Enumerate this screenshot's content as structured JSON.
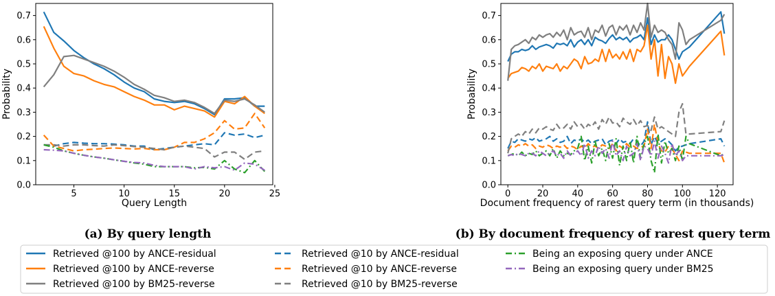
{
  "colors": {
    "blue": "#1f77b4",
    "orange": "#ff7f0e",
    "gray": "#7f7f7f",
    "green": "#2ca02c",
    "purple": "#9467bd"
  },
  "legend": {
    "placement": "bottom",
    "entries": [
      {
        "label": "Retrieved @100 by ANCE-residual",
        "color": "#1f77b4",
        "style": "solid"
      },
      {
        "label": "Retrieved @100 by ANCE-reverse",
        "color": "#ff7f0e",
        "style": "solid"
      },
      {
        "label": "Retrieved @100 by BM25-reverse",
        "color": "#7f7f7f",
        "style": "solid"
      },
      {
        "label": "Retrieved @10 by ANCE-residual",
        "color": "#1f77b4",
        "style": "dashed"
      },
      {
        "label": "Retrieved @10 by ANCE-reverse",
        "color": "#ff7f0e",
        "style": "dashed"
      },
      {
        "label": "Retrieved @10 by BM25-reverse",
        "color": "#7f7f7f",
        "style": "dashed"
      },
      {
        "label": "Being an exposing query under ANCE",
        "color": "#2ca02c",
        "style": "dashdot"
      },
      {
        "label": "Being an exposing query under BM25",
        "color": "#9467bd",
        "style": "dashdot"
      }
    ]
  },
  "chart_data": [
    {
      "type": "line",
      "caption": "(a) By query length",
      "xlabel": "Query Length",
      "ylabel": "Probability",
      "xlim": [
        1.2,
        24.8
      ],
      "ylim": [
        0,
        0.75
      ],
      "xticks": [
        5,
        10,
        15,
        20,
        25
      ],
      "yticks": [
        0.0,
        0.1,
        0.2,
        0.3,
        0.4,
        0.5,
        0.6,
        0.7
      ],
      "grid": false,
      "x": [
        2,
        3,
        4,
        5,
        6,
        7,
        8,
        9,
        10,
        11,
        12,
        13,
        14,
        15,
        16,
        17,
        18,
        19,
        20,
        21,
        22,
        23,
        24
      ],
      "series": [
        {
          "name": "Retrieved @100 by ANCE-residual",
          "color": "#1f77b4",
          "style": "solid",
          "values": [
            0.715,
            0.63,
            0.595,
            0.555,
            0.525,
            0.5,
            0.48,
            0.455,
            0.425,
            0.4,
            0.385,
            0.355,
            0.345,
            0.34,
            0.345,
            0.335,
            0.315,
            0.29,
            0.355,
            0.355,
            0.36,
            0.325,
            0.325
          ]
        },
        {
          "name": "Retrieved @100 by ANCE-reverse",
          "color": "#ff7f0e",
          "style": "solid",
          "values": [
            0.655,
            0.565,
            0.49,
            0.46,
            0.45,
            0.43,
            0.415,
            0.405,
            0.385,
            0.365,
            0.35,
            0.33,
            0.33,
            0.31,
            0.325,
            0.315,
            0.305,
            0.28,
            0.345,
            0.335,
            0.365,
            0.325,
            0.295
          ]
        },
        {
          "name": "Retrieved @100 by BM25-reverse",
          "color": "#7f7f7f",
          "style": "solid",
          "values": [
            0.405,
            0.455,
            0.53,
            0.535,
            0.52,
            0.505,
            0.49,
            0.47,
            0.445,
            0.415,
            0.395,
            0.37,
            0.36,
            0.345,
            0.35,
            0.34,
            0.32,
            0.295,
            0.35,
            0.345,
            0.355,
            0.33,
            0.3
          ]
        },
        {
          "name": "Retrieved @10 by ANCE-residual",
          "color": "#1f77b4",
          "style": "dashed",
          "values": [
            0.165,
            0.16,
            0.17,
            0.175,
            0.172,
            0.17,
            0.17,
            0.168,
            0.165,
            0.16,
            0.16,
            0.145,
            0.15,
            0.155,
            0.16,
            0.165,
            0.17,
            0.165,
            0.215,
            0.205,
            0.21,
            0.195,
            0.205
          ]
        },
        {
          "name": "Retrieved @10 by ANCE-reverse",
          "color": "#ff7f0e",
          "style": "dashed",
          "values": [
            0.205,
            0.16,
            0.15,
            0.14,
            0.145,
            0.147,
            0.15,
            0.152,
            0.15,
            0.148,
            0.15,
            0.145,
            0.145,
            0.155,
            0.175,
            0.175,
            0.19,
            0.215,
            0.265,
            0.23,
            0.235,
            0.295,
            0.235
          ]
        },
        {
          "name": "Retrieved @10 by BM25-reverse",
          "color": "#7f7f7f",
          "style": "dashed",
          "values": [
            0.165,
            0.165,
            0.16,
            0.165,
            0.165,
            0.162,
            0.16,
            0.165,
            0.162,
            0.158,
            0.155,
            0.15,
            0.145,
            0.155,
            0.16,
            0.155,
            0.15,
            0.115,
            0.135,
            0.135,
            0.105,
            0.135,
            0.14
          ]
        },
        {
          "name": "Being an exposing query under ANCE",
          "color": "#2ca02c",
          "style": "dashdot",
          "values": [
            0.165,
            0.155,
            0.14,
            0.13,
            0.122,
            0.115,
            0.11,
            0.103,
            0.097,
            0.09,
            0.085,
            0.075,
            0.075,
            0.075,
            0.075,
            0.07,
            0.072,
            0.065,
            0.1,
            0.065,
            0.05,
            0.1,
            0.055
          ]
        },
        {
          "name": "Being an exposing query under BM25",
          "color": "#9467bd",
          "style": "dashdot",
          "values": [
            0.145,
            0.143,
            0.14,
            0.13,
            0.122,
            0.115,
            0.11,
            0.103,
            0.097,
            0.092,
            0.09,
            0.08,
            0.075,
            0.075,
            0.075,
            0.065,
            0.075,
            0.07,
            0.075,
            0.06,
            0.09,
            0.085,
            0.06
          ]
        }
      ]
    },
    {
      "type": "line",
      "caption": "(b) By document frequency of rarest query term",
      "xlabel": "Document frequency of rarest query term (in thousands)",
      "ylabel": "Probability",
      "xlim": [
        -4,
        129
      ],
      "ylim": [
        0,
        0.75
      ],
      "xticks": [
        0,
        20,
        40,
        60,
        80,
        100,
        120
      ],
      "yticks": [
        0.0,
        0.1,
        0.2,
        0.3,
        0.4,
        0.5,
        0.6,
        0.7
      ],
      "grid": false,
      "x": [
        0,
        2,
        4,
        6,
        8,
        10,
        12,
        14,
        16,
        18,
        20,
        22,
        24,
        26,
        28,
        30,
        32,
        34,
        36,
        38,
        40,
        42,
        44,
        46,
        48,
        50,
        52,
        54,
        56,
        58,
        60,
        62,
        64,
        66,
        68,
        70,
        72,
        74,
        76,
        78,
        80,
        82,
        84,
        86,
        88,
        90,
        92,
        94,
        96,
        98,
        100,
        102,
        104,
        122,
        124
      ],
      "series": [
        {
          "name": "Retrieved @100 by ANCE-residual",
          "color": "#1f77b4",
          "style": "solid",
          "values": [
            0.51,
            0.54,
            0.55,
            0.55,
            0.56,
            0.555,
            0.56,
            0.575,
            0.56,
            0.57,
            0.575,
            0.58,
            0.575,
            0.565,
            0.585,
            0.58,
            0.585,
            0.575,
            0.6,
            0.57,
            0.59,
            0.6,
            0.58,
            0.6,
            0.575,
            0.61,
            0.6,
            0.595,
            0.585,
            0.605,
            0.62,
            0.6,
            0.61,
            0.6,
            0.61,
            0.59,
            0.605,
            0.61,
            0.62,
            0.6,
            0.69,
            0.58,
            0.62,
            0.59,
            0.6,
            0.6,
            0.62,
            0.6,
            0.56,
            0.52,
            0.55,
            0.56,
            0.57,
            0.715,
            0.625
          ]
        },
        {
          "name": "Retrieved @100 by ANCE-reverse",
          "color": "#ff7f0e",
          "style": "solid",
          "values": [
            0.44,
            0.46,
            0.465,
            0.47,
            0.485,
            0.48,
            0.47,
            0.49,
            0.48,
            0.5,
            0.47,
            0.49,
            0.485,
            0.48,
            0.5,
            0.47,
            0.49,
            0.48,
            0.5,
            0.52,
            0.51,
            0.48,
            0.53,
            0.5,
            0.505,
            0.52,
            0.51,
            0.56,
            0.51,
            0.56,
            0.525,
            0.54,
            0.52,
            0.55,
            0.52,
            0.56,
            0.51,
            0.56,
            0.55,
            0.575,
            0.66,
            0.52,
            0.6,
            0.45,
            0.58,
            0.44,
            0.53,
            0.5,
            0.42,
            0.5,
            0.45,
            0.47,
            0.49,
            0.635,
            0.535
          ]
        },
        {
          "name": "Retrieved @100 by BM25-reverse",
          "color": "#7f7f7f",
          "style": "solid",
          "values": [
            0.43,
            0.56,
            0.575,
            0.58,
            0.59,
            0.6,
            0.585,
            0.61,
            0.6,
            0.62,
            0.61,
            0.62,
            0.625,
            0.61,
            0.63,
            0.615,
            0.64,
            0.6,
            0.65,
            0.62,
            0.63,
            0.635,
            0.61,
            0.65,
            0.6,
            0.64,
            0.63,
            0.66,
            0.615,
            0.65,
            0.66,
            0.62,
            0.655,
            0.64,
            0.66,
            0.62,
            0.66,
            0.63,
            0.67,
            0.64,
            0.75,
            0.61,
            0.66,
            0.63,
            0.64,
            0.63,
            0.6,
            0.58,
            0.52,
            0.67,
            0.64,
            0.58,
            0.6,
            0.68,
            0.705
          ]
        },
        {
          "name": "Retrieved @10 by ANCE-residual",
          "color": "#1f77b4",
          "style": "dashed",
          "values": [
            0.15,
            0.18,
            0.175,
            0.19,
            0.185,
            0.18,
            0.19,
            0.185,
            0.195,
            0.18,
            0.185,
            0.19,
            0.2,
            0.18,
            0.19,
            0.175,
            0.18,
            0.2,
            0.17,
            0.185,
            0.18,
            0.19,
            0.175,
            0.185,
            0.17,
            0.18,
            0.185,
            0.19,
            0.165,
            0.18,
            0.185,
            0.17,
            0.19,
            0.175,
            0.18,
            0.17,
            0.19,
            0.18,
            0.16,
            0.18,
            0.26,
            0.165,
            0.2,
            0.17,
            0.18,
            0.19,
            0.18,
            0.165,
            0.14,
            0.155,
            0.16,
            0.165,
            0.17,
            0.19,
            0.16
          ]
        },
        {
          "name": "Retrieved @10 by ANCE-reverse",
          "color": "#ff7f0e",
          "style": "dashed",
          "values": [
            0.14,
            0.16,
            0.155,
            0.165,
            0.16,
            0.17,
            0.16,
            0.165,
            0.15,
            0.16,
            0.155,
            0.165,
            0.16,
            0.15,
            0.16,
            0.155,
            0.165,
            0.15,
            0.16,
            0.155,
            0.145,
            0.16,
            0.15,
            0.17,
            0.155,
            0.16,
            0.15,
            0.165,
            0.16,
            0.15,
            0.17,
            0.14,
            0.16,
            0.15,
            0.17,
            0.155,
            0.16,
            0.15,
            0.155,
            0.16,
            0.23,
            0.15,
            0.25,
            0.17,
            0.14,
            0.135,
            0.16,
            0.15,
            0.125,
            0.1,
            0.14,
            0.135,
            0.13,
            0.13,
            0.09
          ]
        },
        {
          "name": "Retrieved @10 by BM25-reverse",
          "color": "#7f7f7f",
          "style": "dashed",
          "values": [
            0.13,
            0.19,
            0.2,
            0.21,
            0.2,
            0.22,
            0.21,
            0.23,
            0.215,
            0.235,
            0.23,
            0.24,
            0.23,
            0.225,
            0.25,
            0.23,
            0.235,
            0.25,
            0.23,
            0.26,
            0.24,
            0.25,
            0.23,
            0.25,
            0.24,
            0.26,
            0.23,
            0.27,
            0.25,
            0.28,
            0.255,
            0.26,
            0.24,
            0.275,
            0.26,
            0.25,
            0.27,
            0.245,
            0.265,
            0.24,
            0.245,
            0.225,
            0.28,
            0.23,
            0.24,
            0.23,
            0.22,
            0.21,
            0.2,
            0.3,
            0.335,
            0.21,
            0.21,
            0.22,
            0.265
          ]
        },
        {
          "name": "Being an exposing query under ANCE",
          "color": "#2ca02c",
          "style": "dashdot",
          "values": [
            0.12,
            0.125,
            0.13,
            0.12,
            0.135,
            0.12,
            0.13,
            0.125,
            0.14,
            0.12,
            0.13,
            0.14,
            0.12,
            0.15,
            0.11,
            0.14,
            0.12,
            0.13,
            0.125,
            0.14,
            0.15,
            0.2,
            0.1,
            0.16,
            0.09,
            0.18,
            0.12,
            0.15,
            0.1,
            0.17,
            0.11,
            0.19,
            0.08,
            0.16,
            0.1,
            0.18,
            0.09,
            0.2,
            0.11,
            0.17,
            0.2,
            0.1,
            0.05,
            0.21,
            0.09,
            0.18,
            0.13,
            0.15,
            0.1,
            0.16,
            0.1,
            0.2,
            0.17,
            0.12,
            0.13
          ]
        },
        {
          "name": "Being an exposing query under BM25",
          "color": "#9467bd",
          "style": "dashdot",
          "values": [
            0.12,
            0.125,
            0.12,
            0.13,
            0.125,
            0.12,
            0.13,
            0.13,
            0.12,
            0.14,
            0.13,
            0.12,
            0.13,
            0.14,
            0.12,
            0.13,
            0.11,
            0.14,
            0.12,
            0.13,
            0.14,
            0.12,
            0.17,
            0.11,
            0.14,
            0.12,
            0.16,
            0.13,
            0.15,
            0.11,
            0.18,
            0.12,
            0.14,
            0.1,
            0.16,
            0.12,
            0.13,
            0.17,
            0.1,
            0.16,
            0.15,
            0.12,
            0.18,
            0.11,
            0.16,
            0.13,
            0.09,
            0.17,
            0.12,
            0.14,
            0.1,
            0.12,
            0.12,
            0.12,
            0.125
          ]
        }
      ]
    }
  ]
}
